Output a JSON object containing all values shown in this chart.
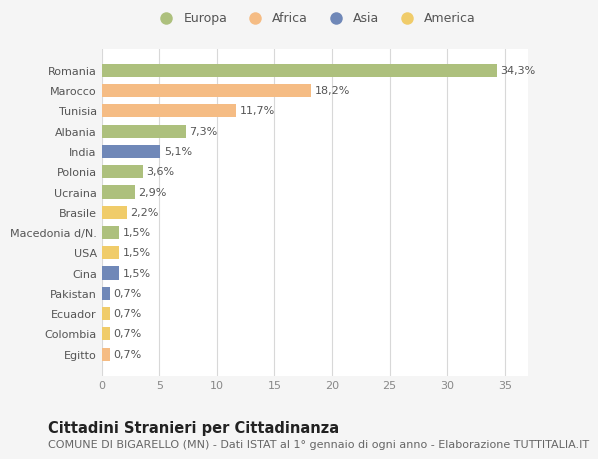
{
  "categories": [
    "Egitto",
    "Colombia",
    "Ecuador",
    "Pakistan",
    "Cina",
    "USA",
    "Macedonia d/N.",
    "Brasile",
    "Ucraina",
    "Polonia",
    "India",
    "Albania",
    "Tunisia",
    "Marocco",
    "Romania"
  ],
  "values": [
    0.7,
    0.7,
    0.7,
    0.7,
    1.5,
    1.5,
    1.5,
    2.2,
    2.9,
    3.6,
    5.1,
    7.3,
    11.7,
    18.2,
    34.3
  ],
  "labels": [
    "0,7%",
    "0,7%",
    "0,7%",
    "0,7%",
    "1,5%",
    "1,5%",
    "1,5%",
    "2,2%",
    "2,9%",
    "3,6%",
    "5,1%",
    "7,3%",
    "11,7%",
    "18,2%",
    "34,3%"
  ],
  "continents": [
    "Africa",
    "America",
    "America",
    "Asia",
    "Asia",
    "America",
    "Europa",
    "America",
    "Europa",
    "Europa",
    "Asia",
    "Europa",
    "Africa",
    "Africa",
    "Europa"
  ],
  "colors": {
    "Europa": "#adc07d",
    "Africa": "#f5bc84",
    "Asia": "#7088b8",
    "America": "#f0cc6a"
  },
  "legend_labels": [
    "Europa",
    "Africa",
    "Asia",
    "America"
  ],
  "legend_colors": [
    "#adc07d",
    "#f5bc84",
    "#7088b8",
    "#f0cc6a"
  ],
  "xlim": [
    0,
    37
  ],
  "xticks": [
    0,
    5,
    10,
    15,
    20,
    25,
    30,
    35
  ],
  "background_color": "#f5f5f5",
  "bar_background": "#ffffff",
  "grid_color": "#d8d8d8",
  "title": "Cittadini Stranieri per Cittadinanza",
  "subtitle": "COMUNE DI BIGARELLO (MN) - Dati ISTAT al 1° gennaio di ogni anno - Elaborazione TUTTITALIA.IT",
  "title_fontsize": 10.5,
  "subtitle_fontsize": 8,
  "label_fontsize": 8,
  "tick_fontsize": 8
}
